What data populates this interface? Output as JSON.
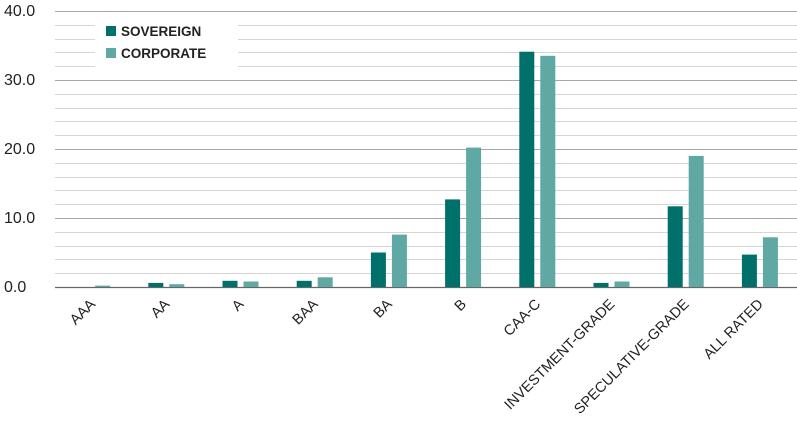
{
  "chart_data": {
    "type": "bar",
    "categories": [
      "AAA",
      "AA",
      "A",
      "BAA",
      "BA",
      "B",
      "CAA-C",
      "INVESTMENT-GRADE",
      "SPECULATIVE-GRADE",
      "ALL RATED"
    ],
    "series": [
      {
        "name": "SOVEREIGN",
        "color": "#00706b",
        "values": [
          0.0,
          0.6,
          0.9,
          0.9,
          5.0,
          12.7,
          34.1,
          0.6,
          11.7,
          4.7
        ]
      },
      {
        "name": "CORPORATE",
        "color": "#5fa8a4",
        "values": [
          0.2,
          0.4,
          0.8,
          1.4,
          7.6,
          20.2,
          33.5,
          0.8,
          19.0,
          7.2
        ]
      }
    ],
    "ylim": [
      0,
      40
    ],
    "yticks": [
      "0.0",
      "10.0",
      "20.0",
      "30.0",
      "40.0"
    ],
    "minor_gridlines": true,
    "legend_position": "top-left",
    "title": "",
    "xlabel": "",
    "ylabel": ""
  }
}
